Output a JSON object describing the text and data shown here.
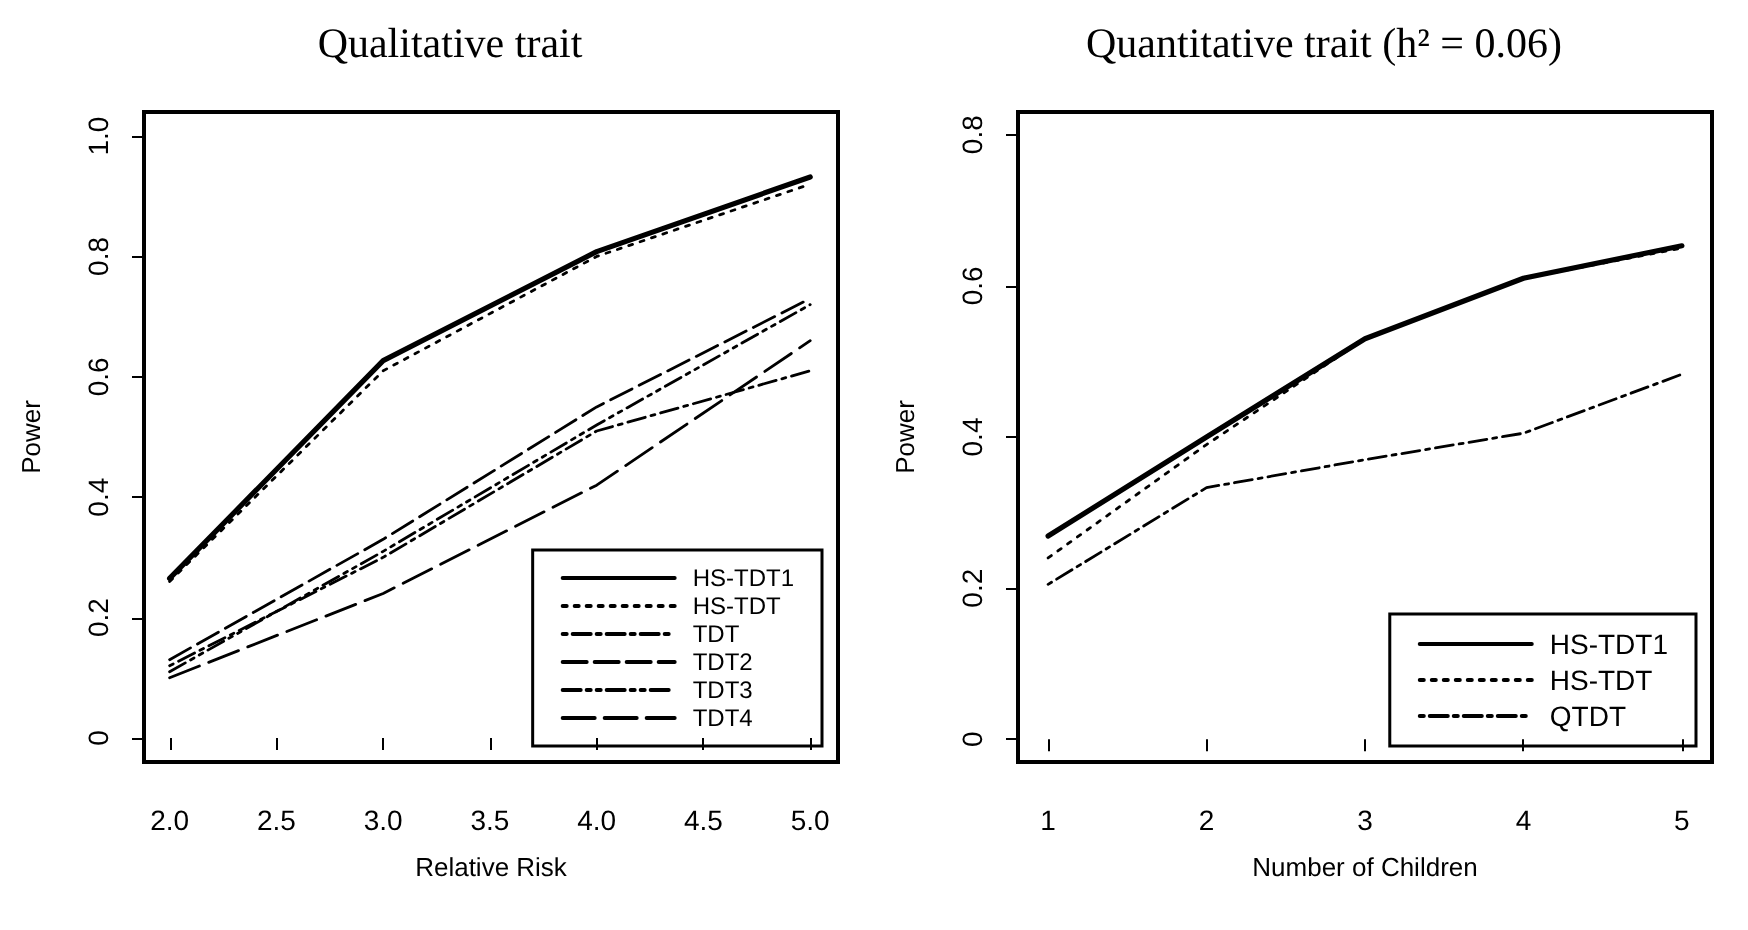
{
  "chart_data": [
    {
      "type": "line",
      "title": "Qualitative trait",
      "xlabel": "Relative Risk",
      "ylabel": "Power",
      "x": [
        2,
        3,
        4,
        5
      ],
      "xlim": [
        1.88,
        5.13
      ],
      "xticks": [
        {
          "value": 2,
          "label": "2.0"
        },
        {
          "value": 2.5,
          "label": "2.5"
        },
        {
          "value": 3,
          "label": "3.0"
        },
        {
          "value": 3.5,
          "label": "3.5"
        },
        {
          "value": 4,
          "label": "4.0"
        },
        {
          "value": 4.5,
          "label": "4.5"
        },
        {
          "value": 5,
          "label": "5.0"
        }
      ],
      "ylim": [
        -0.04,
        1.04
      ],
      "yticks": [
        0,
        0.2,
        0.4,
        0.6,
        0.8,
        {
          "value": 1,
          "label": "1.0"
        }
      ],
      "grid": false,
      "legend": "bottom right",
      "marker": "none",
      "series": [
        {
          "name": "HS-TDT1",
          "color": "#000000",
          "line_style": "solid",
          "values": [
            0.265,
            0.627,
            0.808,
            0.932
          ]
        },
        {
          "name": "HS-TDT",
          "color": "#000000",
          "line_style": "dotted",
          "values": [
            0.26,
            0.61,
            0.8,
            0.92
          ]
        },
        {
          "name": "TDT",
          "color": "#000000",
          "line_style": "dashdot",
          "values": [
            0.12,
            0.3,
            0.51,
            0.61
          ]
        },
        {
          "name": "TDT2",
          "color": "#000000",
          "line_style": "dashed",
          "values": [
            0.13,
            0.33,
            0.55,
            0.73
          ]
        },
        {
          "name": "TDT3",
          "color": "#000000",
          "line_style": "dashdotdot",
          "values": [
            0.11,
            0.31,
            0.52,
            0.72
          ]
        },
        {
          "name": "TDT4",
          "color": "#000000",
          "line_style": "longdash",
          "values": [
            0.1,
            0.24,
            0.42,
            0.66
          ]
        }
      ]
    },
    {
      "type": "line",
      "title": "Quantitative trait (h² = 0.06)",
      "xlabel": "Number of Children",
      "ylabel": "Power",
      "x": [
        1,
        2,
        3,
        4,
        5
      ],
      "xlim": [
        0.81,
        5.19
      ],
      "xticks": [
        1,
        2,
        3,
        4,
        5
      ],
      "ylim": [
        -0.03,
        0.83
      ],
      "yticks": [
        0,
        0.2,
        0.4,
        0.6,
        0.8
      ],
      "grid": false,
      "legend": "bottom right",
      "marker": "none",
      "series": [
        {
          "name": "HS-TDT1",
          "color": "#000000",
          "line_style": "solid",
          "values": [
            0.269,
            0.4,
            0.53,
            0.61,
            0.653
          ]
        },
        {
          "name": "HS-TDT",
          "color": "#000000",
          "line_style": "dotted",
          "values": [
            0.24,
            0.39,
            0.53,
            0.61,
            0.65
          ]
        },
        {
          "name": "QTDT",
          "color": "#000000",
          "line_style": "dashdot",
          "values": [
            0.205,
            0.333,
            0.37,
            0.405,
            0.483
          ]
        }
      ]
    }
  ]
}
